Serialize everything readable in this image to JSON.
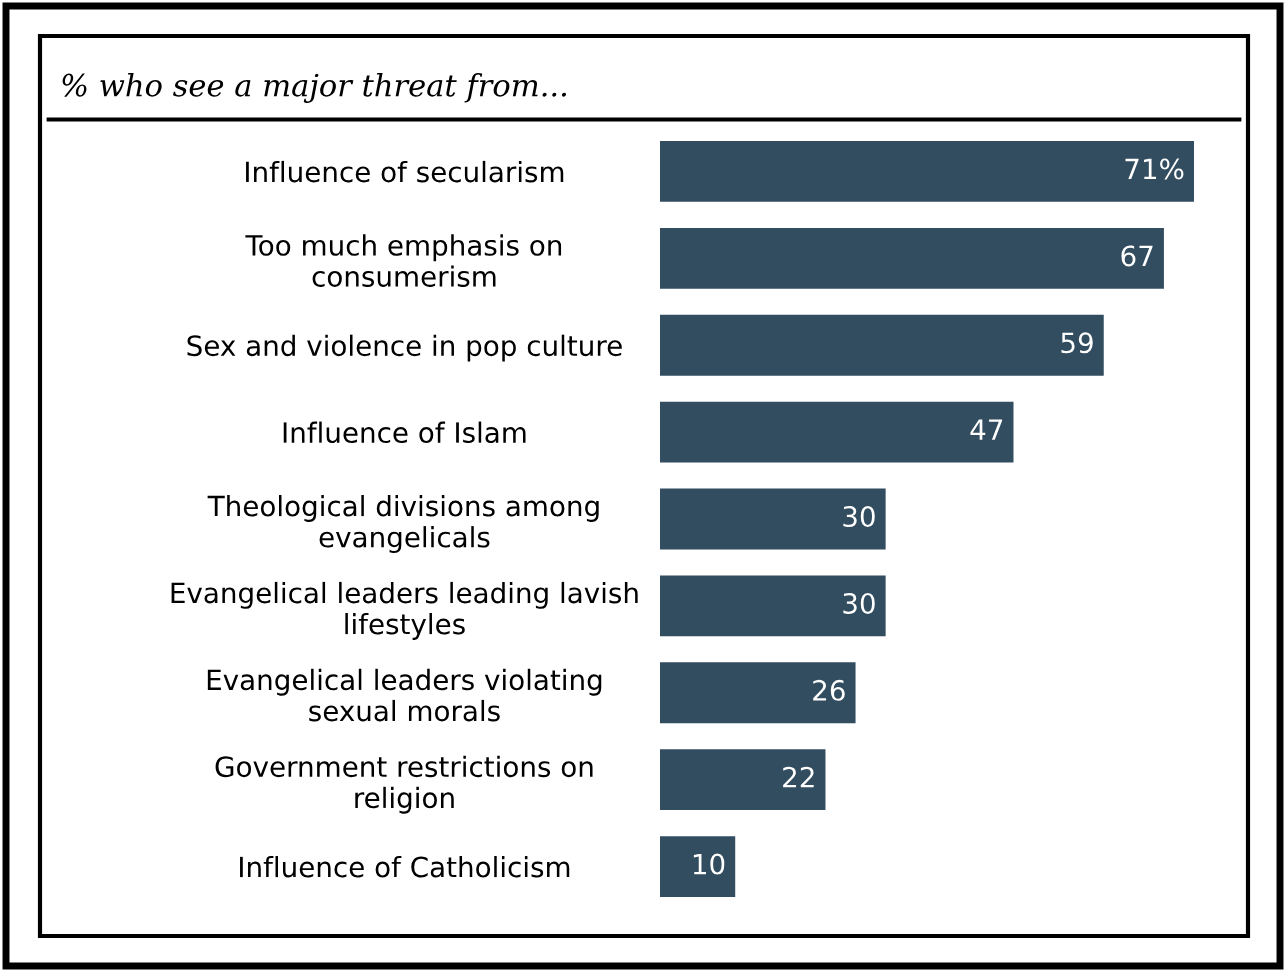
{
  "chart_data": {
    "type": "bar",
    "orientation": "horizontal",
    "title": "% who see a major threat from...",
    "categories": [
      "Influence of secularism",
      "Too much emphasis on\nconsumerism",
      "Sex and violence in pop culture",
      "Influence of Islam",
      "Theological divisions among\nevangelicals",
      "Evangelical leaders leading lavish\nlifestyles",
      "Evangelical leaders violating\nsexual morals",
      "Government restrictions on\nreligion",
      "Influence of Catholicism"
    ],
    "values": [
      71,
      67,
      59,
      47,
      30,
      30,
      26,
      22,
      10
    ],
    "value_labels": [
      "71%",
      "67",
      "59",
      "47",
      "30",
      "30",
      "26",
      "22",
      "10"
    ],
    "color": "#324d60"
  }
}
